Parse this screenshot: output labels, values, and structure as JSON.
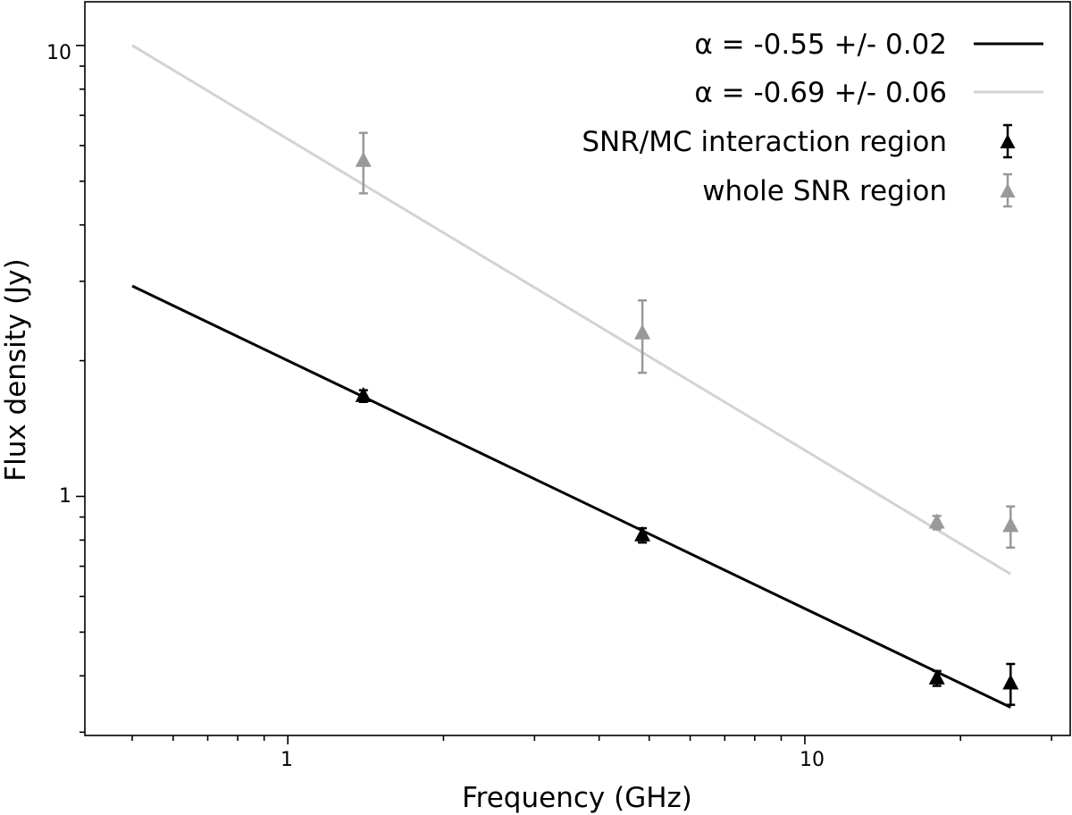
{
  "chart_data": {
    "type": "scatter",
    "title": "",
    "xlabel": "Frequency (GHz)",
    "ylabel": "Flux density (Jy)",
    "xscale": "log",
    "yscale": "log",
    "xlim": [
      0.405,
      32.6
    ],
    "ylim": [
      0.295,
      12.5
    ],
    "xticks": [
      {
        "value": 1,
        "label": "1"
      },
      {
        "value": 10,
        "label": "10"
      }
    ],
    "yticks": [
      {
        "value": 1,
        "label": "1"
      },
      {
        "value": 10,
        "label": "10"
      }
    ],
    "grid": false,
    "legend_position": "top-right",
    "fits": [
      {
        "name": "fit-interaction",
        "label": "α = -0.55 +/- 0.02",
        "color": "#000000",
        "x_range": [
          0.5,
          25
        ],
        "anchor_x": 1.0,
        "anchor_y": 2.0,
        "slope": -0.55
      },
      {
        "name": "fit-whole",
        "label": "α = -0.69 +/- 0.06",
        "color": "#d3d3d3",
        "x_range": [
          0.5,
          25
        ],
        "anchor_x": 1.0,
        "anchor_y": 6.2,
        "slope": -0.69
      }
    ],
    "series": [
      {
        "name": "SNR/MC interaction region",
        "color": "#000000",
        "marker": "triangle",
        "points": [
          {
            "x": 1.4,
            "y": 1.67,
            "err": 0.05
          },
          {
            "x": 4.85,
            "y": 0.82,
            "err": 0.03
          },
          {
            "x": 18.0,
            "y": 0.395,
            "err": 0.015
          },
          {
            "x": 25.0,
            "y": 0.385,
            "err": 0.04
          }
        ]
      },
      {
        "name": "whole SNR region",
        "color": "#999999",
        "marker": "triangle",
        "points": [
          {
            "x": 1.4,
            "y": 5.55,
            "err": 0.85
          },
          {
            "x": 4.85,
            "y": 2.3,
            "err": 0.42
          },
          {
            "x": 18.0,
            "y": 0.875,
            "err": 0.03
          },
          {
            "x": 25.0,
            "y": 0.86,
            "err": 0.09
          }
        ]
      }
    ]
  }
}
